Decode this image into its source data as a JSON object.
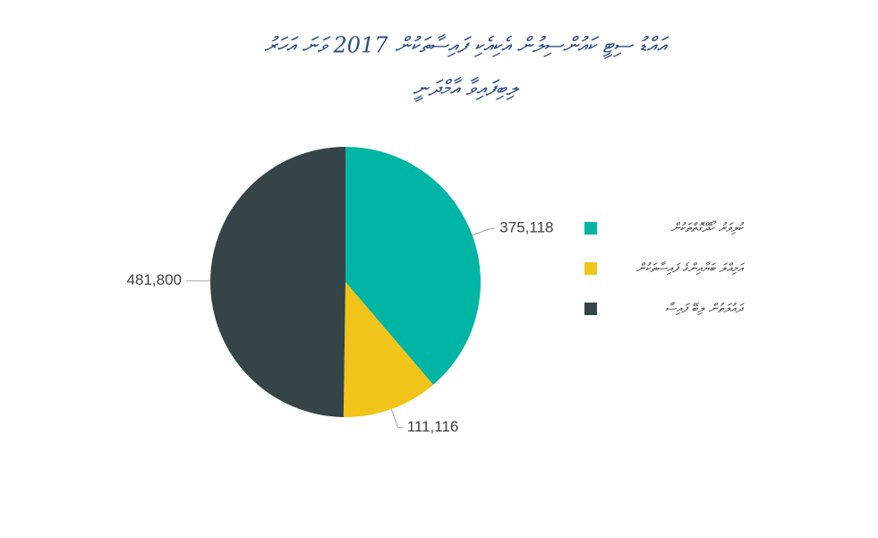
{
  "chart_data": {
    "type": "pie",
    "title": [
      "އައްޑު ސިޓީ ކައުންސިލުން އެކިއެކި ފައިސާތަކުން 2017 ވަނަ އަހަރު",
      "ލިބިފައިވާ އާމްދަނީ"
    ],
    "categories": [
      "ކުލިވަރު ހޯދޭގޮތްތަކުން",
      "އަމިއްލަ ބަޔާއިންގެ ފައިސާތަކުން",
      "ދައުލަތުން ލިބޭ ފައިސާ"
    ],
    "values": [
      375118,
      111116,
      481800
    ],
    "value_labels": [
      "375,118",
      "111,116",
      "481,800"
    ],
    "colors": [
      "#00b5a3",
      "#f0c419",
      "#354547"
    ],
    "legend": "right"
  }
}
